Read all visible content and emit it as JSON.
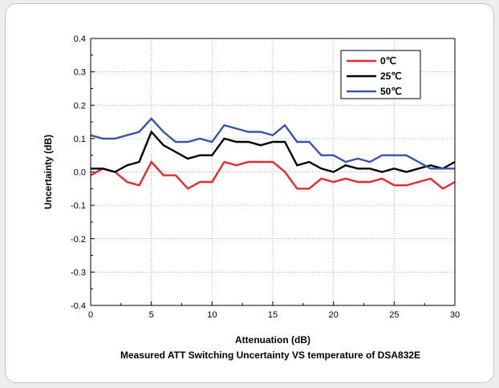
{
  "chart_data": {
    "type": "line",
    "caption": "Measured ATT Switching Uncertainty VS temperature of DSA832E",
    "xlabel": "Attenuation (dB)",
    "ylabel": "Uncertainty (dB)",
    "xlim": [
      0,
      30
    ],
    "ylim": [
      -0.4,
      0.4
    ],
    "x_ticks": [
      "0",
      "5",
      "10",
      "15",
      "20",
      "25",
      "30"
    ],
    "y_ticks": [
      "0.4",
      "0.3",
      "0.2",
      "0.1",
      "0.0",
      "-0.1",
      "-0.2",
      "-0.3",
      "-0.4"
    ],
    "grid": true,
    "legend_position": "top-right",
    "x": [
      0,
      1,
      2,
      3,
      4,
      5,
      6,
      7,
      8,
      9,
      10,
      11,
      12,
      13,
      14,
      15,
      16,
      17,
      18,
      19,
      20,
      21,
      22,
      23,
      24,
      25,
      26,
      27,
      28,
      29,
      30
    ],
    "series": [
      {
        "name": "0℃",
        "color": "#e8292e",
        "values": [
          -0.01,
          0.01,
          0.0,
          -0.03,
          -0.04,
          0.03,
          -0.01,
          -0.01,
          -0.05,
          -0.03,
          -0.03,
          0.03,
          0.02,
          0.03,
          0.03,
          0.03,
          0.0,
          -0.05,
          -0.05,
          -0.02,
          -0.03,
          -0.02,
          -0.03,
          -0.03,
          -0.02,
          -0.04,
          -0.04,
          -0.03,
          -0.02,
          -0.05,
          -0.03
        ]
      },
      {
        "name": "25℃",
        "color": "#000000",
        "values": [
          0.01,
          0.01,
          0.0,
          0.02,
          0.03,
          0.12,
          0.08,
          0.06,
          0.04,
          0.05,
          0.05,
          0.1,
          0.09,
          0.09,
          0.08,
          0.09,
          0.09,
          0.02,
          0.03,
          0.01,
          0.0,
          0.02,
          0.01,
          0.01,
          0.0,
          0.01,
          0.0,
          0.01,
          0.02,
          0.01,
          0.03
        ]
      },
      {
        "name": "50℃",
        "color": "#3a54a4",
        "values": [
          0.11,
          0.1,
          0.1,
          0.11,
          0.12,
          0.16,
          0.12,
          0.09,
          0.09,
          0.1,
          0.09,
          0.14,
          0.13,
          0.12,
          0.12,
          0.11,
          0.14,
          0.09,
          0.09,
          0.05,
          0.05,
          0.03,
          0.04,
          0.03,
          0.05,
          0.05,
          0.05,
          0.03,
          0.01,
          0.01,
          0.01
        ]
      }
    ]
  }
}
